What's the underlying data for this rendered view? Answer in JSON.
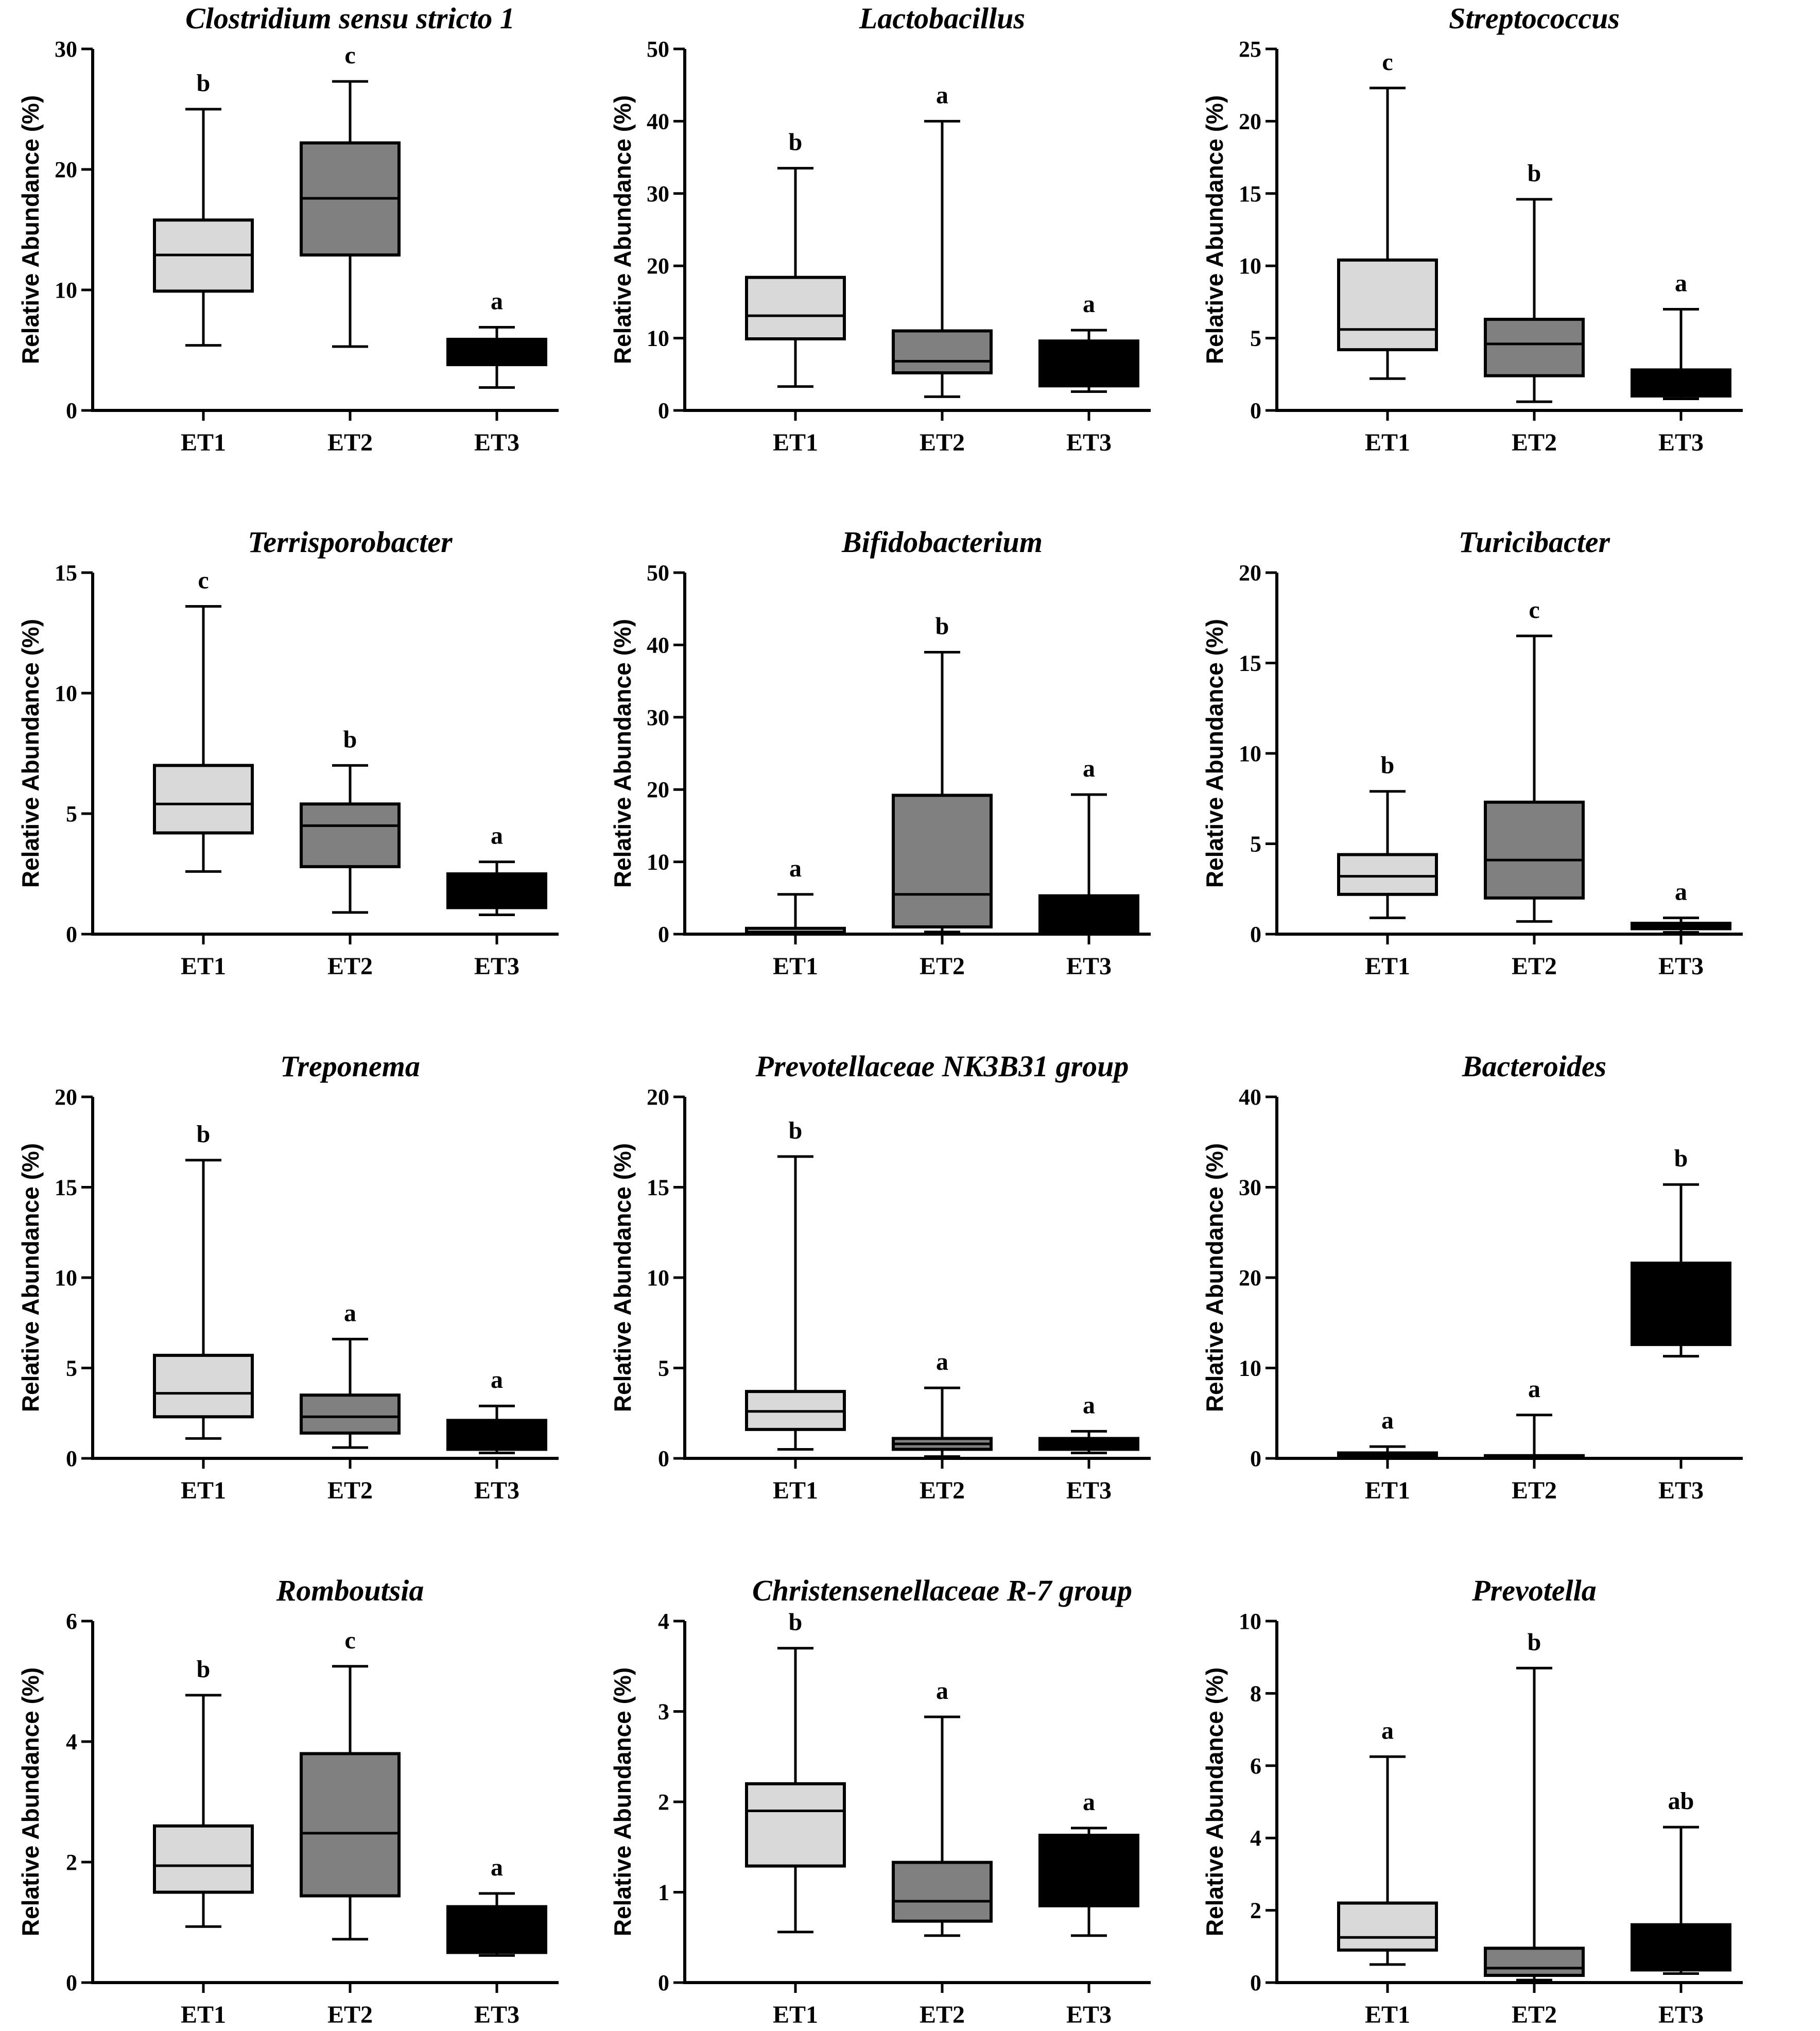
{
  "colors": {
    "ET1": "#d9d9d9",
    "ET2": "#808080",
    "ET3": "#000000",
    "stroke": "#000000"
  },
  "chart_data": [
    {
      "type": "box",
      "title": "Clostridium sensu stricto 1",
      "ylabel": "Relative Abundance (%)",
      "categories": [
        "ET1",
        "ET2",
        "ET3"
      ],
      "ylim": [
        0,
        30
      ],
      "yticks": [
        0,
        10,
        20,
        30
      ],
      "boxes": [
        {
          "min": 5.4,
          "q1": 9.9,
          "median": 12.9,
          "q3": 15.8,
          "max": 25.0,
          "sig": "b"
        },
        {
          "min": 5.3,
          "q1": 12.9,
          "median": 17.6,
          "q3": 22.2,
          "max": 27.3,
          "sig": "c"
        },
        {
          "min": 1.9,
          "q1": 3.8,
          "median": 5.0,
          "q3": 5.9,
          "max": 6.9,
          "sig": "a"
        }
      ]
    },
    {
      "type": "box",
      "title": "Lactobacillus",
      "ylabel": "Relative Abundance (%)",
      "categories": [
        "ET1",
        "ET2",
        "ET3"
      ],
      "ylim": [
        0,
        50
      ],
      "yticks": [
        0,
        10,
        20,
        30,
        40,
        50
      ],
      "boxes": [
        {
          "min": 3.3,
          "q1": 9.9,
          "median": 13.1,
          "q3": 18.4,
          "max": 33.5,
          "sig": "b"
        },
        {
          "min": 1.9,
          "q1": 5.2,
          "median": 6.8,
          "q3": 11.0,
          "max": 40.0,
          "sig": "a"
        },
        {
          "min": 2.6,
          "q1": 3.4,
          "median": 8.0,
          "q3": 9.6,
          "max": 11.1,
          "sig": "a"
        }
      ]
    },
    {
      "type": "box",
      "title": "Streptococcus",
      "ylabel": "Relative Abundance (%)",
      "categories": [
        "ET1",
        "ET2",
        "ET3"
      ],
      "ylim": [
        0,
        25
      ],
      "yticks": [
        0,
        5,
        10,
        15,
        20,
        25
      ],
      "boxes": [
        {
          "min": 2.2,
          "q1": 4.2,
          "median": 5.6,
          "q3": 10.4,
          "max": 22.3,
          "sig": "c"
        },
        {
          "min": 0.6,
          "q1": 2.4,
          "median": 4.6,
          "q3": 6.3,
          "max": 14.6,
          "sig": "b"
        },
        {
          "min": 0.8,
          "q1": 1.0,
          "median": 2.2,
          "q3": 2.8,
          "max": 7.0,
          "sig": "a"
        }
      ]
    },
    {
      "type": "box",
      "title": "Terrisporobacter",
      "ylabel": "Relative Abundance (%)",
      "categories": [
        "ET1",
        "ET2",
        "ET3"
      ],
      "ylim": [
        0,
        15
      ],
      "yticks": [
        0,
        5,
        10,
        15
      ],
      "boxes": [
        {
          "min": 2.6,
          "q1": 4.2,
          "median": 5.4,
          "q3": 7.0,
          "max": 13.6,
          "sig": "c"
        },
        {
          "min": 0.9,
          "q1": 2.8,
          "median": 4.5,
          "q3": 5.4,
          "max": 7.0,
          "sig": "b"
        },
        {
          "min": 0.8,
          "q1": 1.1,
          "median": 2.0,
          "q3": 2.5,
          "max": 3.0,
          "sig": "a"
        }
      ]
    },
    {
      "type": "box",
      "title": "Bifidobacterium",
      "ylabel": "Relative Abundance (%)",
      "categories": [
        "ET1",
        "ET2",
        "ET3"
      ],
      "ylim": [
        0,
        50
      ],
      "yticks": [
        0,
        10,
        20,
        30,
        40,
        50
      ],
      "boxes": [
        {
          "min": 0.0,
          "q1": 0.1,
          "median": 0.3,
          "q3": 0.8,
          "max": 5.5,
          "sig": "a"
        },
        {
          "min": 0.3,
          "q1": 1.0,
          "median": 5.5,
          "q3": 19.2,
          "max": 39.0,
          "sig": "b"
        },
        {
          "min": 0.0,
          "q1": 0.1,
          "median": 1.0,
          "q3": 5.3,
          "max": 19.3,
          "sig": "a"
        }
      ]
    },
    {
      "type": "box",
      "title": "Turicibacter",
      "ylabel": "Relative Abundance (%)",
      "categories": [
        "ET1",
        "ET2",
        "ET3"
      ],
      "ylim": [
        0,
        20
      ],
      "yticks": [
        0,
        5,
        10,
        15,
        20
      ],
      "boxes": [
        {
          "min": 0.9,
          "q1": 2.2,
          "median": 3.2,
          "q3": 4.4,
          "max": 7.9,
          "sig": "b"
        },
        {
          "min": 0.7,
          "q1": 2.0,
          "median": 4.1,
          "q3": 7.3,
          "max": 16.5,
          "sig": "c"
        },
        {
          "min": 0.1,
          "q1": 0.3,
          "median": 0.5,
          "q3": 0.6,
          "max": 0.9,
          "sig": "a"
        }
      ]
    },
    {
      "type": "box",
      "title": "Treponema",
      "ylabel": "Relative Abundance (%)",
      "categories": [
        "ET1",
        "ET2",
        "ET3"
      ],
      "ylim": [
        0,
        20
      ],
      "yticks": [
        0,
        5,
        10,
        15,
        20
      ],
      "boxes": [
        {
          "min": 1.1,
          "q1": 2.3,
          "median": 3.6,
          "q3": 5.7,
          "max": 16.5,
          "sig": "b"
        },
        {
          "min": 0.6,
          "q1": 1.4,
          "median": 2.3,
          "q3": 3.5,
          "max": 6.6,
          "sig": "a"
        },
        {
          "min": 0.3,
          "q1": 0.5,
          "median": 1.0,
          "q3": 2.1,
          "max": 2.9,
          "sig": "a"
        }
      ]
    },
    {
      "type": "box",
      "title": "Prevotellaceae NK3B31 group",
      "ylabel": "Relative Abundance (%)",
      "categories": [
        "ET1",
        "ET2",
        "ET3"
      ],
      "ylim": [
        0,
        20
      ],
      "yticks": [
        0,
        5,
        10,
        15,
        20
      ],
      "boxes": [
        {
          "min": 0.5,
          "q1": 1.6,
          "median": 2.6,
          "q3": 3.7,
          "max": 16.7,
          "sig": "b"
        },
        {
          "min": 0.1,
          "q1": 0.5,
          "median": 0.8,
          "q3": 1.1,
          "max": 3.9,
          "sig": "a"
        },
        {
          "min": 0.3,
          "q1": 0.5,
          "median": 0.8,
          "q3": 1.1,
          "max": 1.5,
          "sig": "a"
        }
      ]
    },
    {
      "type": "box",
      "title": "Bacteroides",
      "ylabel": "Relative Abundance (%)",
      "categories": [
        "ET1",
        "ET2",
        "ET3"
      ],
      "ylim": [
        0,
        40
      ],
      "yticks": [
        0,
        10,
        20,
        30,
        40
      ],
      "boxes": [
        {
          "min": 0.0,
          "q1": 0.1,
          "median": 0.3,
          "q3": 0.6,
          "max": 1.3,
          "sig": "a"
        },
        {
          "min": 0.0,
          "q1": 0.05,
          "median": 0.1,
          "q3": 0.3,
          "max": 4.8,
          "sig": "a"
        },
        {
          "min": 11.3,
          "q1": 12.6,
          "median": 16.0,
          "q3": 21.6,
          "max": 30.3,
          "sig": "b"
        }
      ]
    },
    {
      "type": "box",
      "title": "Romboutsia",
      "ylabel": "Relative Abundance (%)",
      "categories": [
        "ET1",
        "ET2",
        "ET3"
      ],
      "ylim": [
        0,
        6
      ],
      "yticks": [
        0,
        2,
        4,
        6
      ],
      "boxes": [
        {
          "min": 0.93,
          "q1": 1.5,
          "median": 1.94,
          "q3": 2.6,
          "max": 4.77,
          "sig": "b"
        },
        {
          "min": 0.72,
          "q1": 1.44,
          "median": 2.48,
          "q3": 3.8,
          "max": 5.25,
          "sig": "c"
        },
        {
          "min": 0.45,
          "q1": 0.5,
          "median": 0.9,
          "q3": 1.26,
          "max": 1.48,
          "sig": "a"
        }
      ]
    },
    {
      "type": "box",
      "title": "Christensenellaceae R-7 group",
      "ylabel": "Relative Abundance (%)",
      "categories": [
        "ET1",
        "ET2",
        "ET3"
      ],
      "ylim": [
        0,
        4
      ],
      "yticks": [
        0,
        1,
        2,
        3,
        4
      ],
      "boxes": [
        {
          "min": 0.56,
          "q1": 1.29,
          "median": 1.9,
          "q3": 2.2,
          "max": 3.7,
          "sig": "b"
        },
        {
          "min": 0.52,
          "q1": 0.68,
          "median": 0.9,
          "q3": 1.33,
          "max": 2.94,
          "sig": "a"
        },
        {
          "min": 0.52,
          "q1": 0.85,
          "median": 1.5,
          "q3": 1.63,
          "max": 1.71,
          "sig": "a"
        }
      ]
    },
    {
      "type": "box",
      "title": "Prevotella",
      "ylabel": "Relative Abundance (%)",
      "categories": [
        "ET1",
        "ET2",
        "ET3"
      ],
      "ylim": [
        0,
        10
      ],
      "yticks": [
        0,
        2,
        4,
        6,
        8,
        10
      ],
      "boxes": [
        {
          "min": 0.5,
          "q1": 0.9,
          "median": 1.25,
          "q3": 2.2,
          "max": 6.25,
          "sig": "a"
        },
        {
          "min": 0.07,
          "q1": 0.2,
          "median": 0.4,
          "q3": 0.95,
          "max": 8.7,
          "sig": "b"
        },
        {
          "min": 0.25,
          "q1": 0.35,
          "median": 1.0,
          "q3": 1.6,
          "max": 4.3,
          "sig": "ab"
        }
      ]
    }
  ]
}
